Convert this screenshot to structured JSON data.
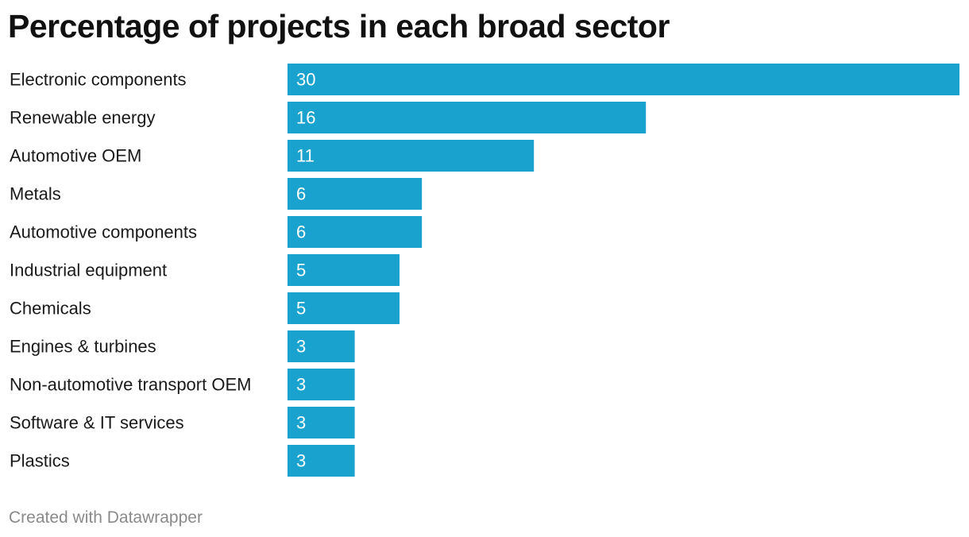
{
  "title": "Percentage of projects in each broad sector",
  "footer": "Created with Datawrapper",
  "colors": {
    "bar": "#1aa2cf",
    "bar_label": "#ffffff",
    "category_label": "#1a1a1a"
  },
  "chart_data": {
    "type": "bar",
    "orientation": "horizontal",
    "title": "Percentage of projects in each broad sector",
    "xlabel": "",
    "ylabel": "",
    "xlim": [
      0,
      30
    ],
    "grid": false,
    "legend": "none",
    "categories": [
      "Electronic components",
      "Renewable energy",
      "Automotive OEM",
      "Metals",
      "Automotive components",
      "Industrial equipment",
      "Chemicals",
      "Engines & turbines",
      "Non-automotive transport OEM",
      "Software & IT services",
      "Plastics"
    ],
    "values": [
      30,
      16,
      11,
      6,
      6,
      5,
      5,
      3,
      3,
      3,
      3
    ]
  }
}
